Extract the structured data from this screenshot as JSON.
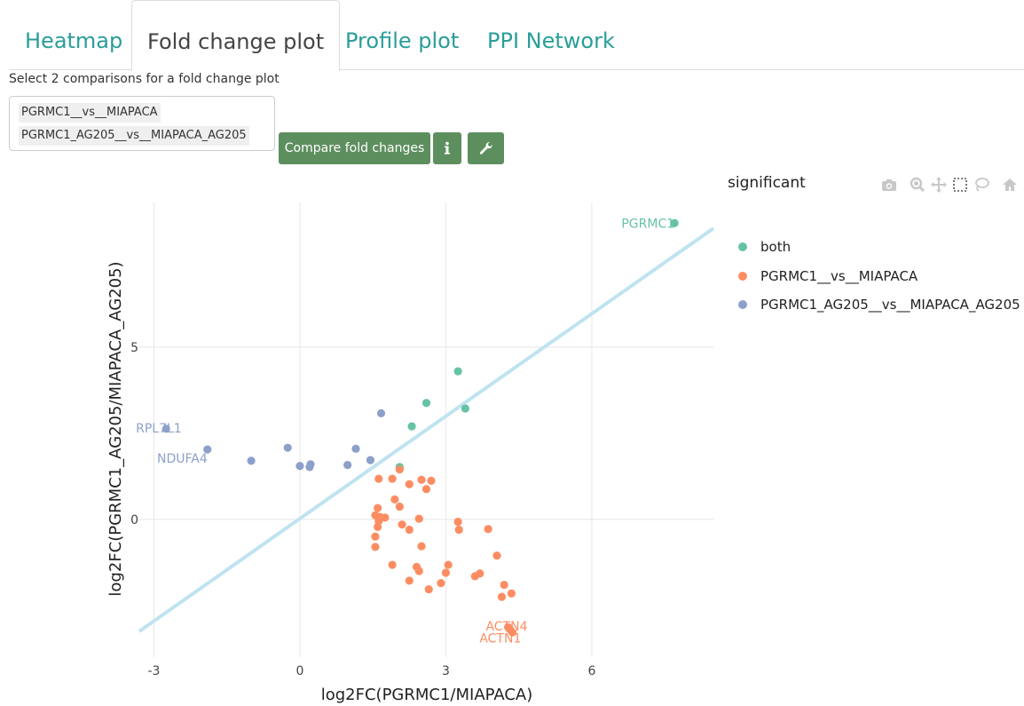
{
  "tabs": [
    {
      "label": "Heatmap"
    },
    {
      "label": "Fold change plot"
    },
    {
      "label": "Profile plot"
    },
    {
      "label": "PPI Network"
    }
  ],
  "selector": {
    "label": "Select 2 comparisons for a fold change plot",
    "selected": [
      "PGRMC1__vs__MIAPACA",
      "PGRMC1_AG205__vs__MIAPACA_AG205"
    ]
  },
  "buttons": {
    "compare_label": "Compare fold changes",
    "info_icon": "info-icon",
    "settings_icon": "wrench-icon"
  },
  "modebar": [
    "camera-icon",
    "zoom-icon",
    "pan-icon",
    "box-select-icon",
    "lasso-icon",
    "home-icon"
  ],
  "colors": {
    "both": "#66c2a5",
    "pgrmc1": "#fc8d62",
    "ag205": "#8da0cb",
    "fit_line": "#bfe3f0",
    "tab_text": "#2a9d9a",
    "button": "#5d8f5e"
  },
  "chart_data": {
    "type": "scatter",
    "xlabel": "log2FC(PGRMC1/MIAPACA)",
    "ylabel": "log2FC(PGRMC1_AG205/MIAPACA_AG205)",
    "xlim": [
      -3.3,
      8.5
    ],
    "ylim": [
      -4.0,
      9.2
    ],
    "xticks": [
      -3,
      0,
      3,
      6
    ],
    "yticks": [
      0,
      5
    ],
    "legend_title": "significant",
    "legend_position": "right",
    "grid": true,
    "reference_line": {
      "x": [
        -3.3,
        8.5
      ],
      "y": [
        -3.25,
        8.45
      ]
    },
    "series": [
      {
        "name": "both",
        "color": "#66c2a5",
        "points": [
          [
            7.7,
            8.6
          ],
          [
            3.25,
            4.3
          ],
          [
            2.6,
            3.38
          ],
          [
            3.4,
            3.22
          ],
          [
            2.3,
            2.7
          ],
          [
            2.05,
            1.52
          ]
        ],
        "labels": [
          {
            "text": "PGRMC1",
            "x": 7.7,
            "y": 8.6,
            "anchor": "end"
          }
        ]
      },
      {
        "name": "PGRMC1__vs__MIAPACA",
        "color": "#fc8d62",
        "points": [
          [
            2.05,
            1.45
          ],
          [
            1.62,
            1.18
          ],
          [
            1.9,
            1.18
          ],
          [
            2.5,
            1.15
          ],
          [
            2.7,
            1.12
          ],
          [
            2.25,
            1.02
          ],
          [
            2.6,
            0.88
          ],
          [
            1.95,
            0.58
          ],
          [
            2.05,
            0.37
          ],
          [
            1.6,
            0.33
          ],
          [
            1.55,
            0.12
          ],
          [
            1.65,
            0.07
          ],
          [
            1.75,
            0.05
          ],
          [
            1.62,
            -0.05
          ],
          [
            2.45,
            0.02
          ],
          [
            3.25,
            -0.07
          ],
          [
            2.1,
            -0.15
          ],
          [
            1.6,
            -0.22
          ],
          [
            2.25,
            -0.3
          ],
          [
            3.27,
            -0.3
          ],
          [
            3.87,
            -0.28
          ],
          [
            1.55,
            -0.5
          ],
          [
            1.55,
            -0.8
          ],
          [
            2.5,
            -0.78
          ],
          [
            4.05,
            -1.05
          ],
          [
            1.9,
            -1.32
          ],
          [
            2.4,
            -1.38
          ],
          [
            2.45,
            -1.5
          ],
          [
            3.05,
            -1.32
          ],
          [
            3.0,
            -1.55
          ],
          [
            3.7,
            -1.57
          ],
          [
            3.6,
            -1.65
          ],
          [
            2.25,
            -1.78
          ],
          [
            2.9,
            -1.85
          ],
          [
            4.2,
            -1.9
          ],
          [
            2.65,
            -2.03
          ],
          [
            4.35,
            -2.15
          ],
          [
            4.15,
            -2.25
          ],
          [
            4.28,
            -3.13
          ],
          [
            4.32,
            -3.2
          ],
          [
            4.37,
            -3.28
          ]
        ],
        "labels": [
          {
            "text": "ACTN4",
            "x": 4.25,
            "y": -3.1,
            "anchor": "middle"
          },
          {
            "text": "ACTN1",
            "x": 4.12,
            "y": -3.45,
            "anchor": "middle"
          }
        ]
      },
      {
        "name": "PGRMC1_AG205__vs__MIAPACA_AG205",
        "color": "#8da0cb",
        "points": [
          [
            -2.75,
            2.63
          ],
          [
            -1.9,
            2.03
          ],
          [
            -1.0,
            1.7
          ],
          [
            -0.25,
            2.08
          ],
          [
            0.0,
            1.55
          ],
          [
            0.2,
            1.52
          ],
          [
            0.22,
            1.6
          ],
          [
            0.98,
            1.58
          ],
          [
            1.15,
            2.05
          ],
          [
            1.45,
            1.72
          ],
          [
            1.67,
            3.08
          ]
        ],
        "labels": [
          {
            "text": "RPL7L1",
            "x": -2.9,
            "y": 2.65,
            "anchor": "middle"
          },
          {
            "text": "NDUFA4",
            "x": -1.9,
            "y": 1.78,
            "anchor": "end"
          }
        ]
      }
    ]
  }
}
